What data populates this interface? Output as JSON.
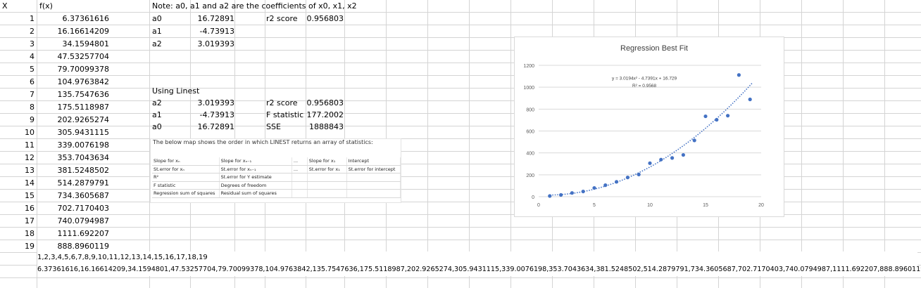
{
  "columns": {
    "x": "X",
    "fx": "f(x)"
  },
  "rows": [
    {
      "x": "1",
      "fx": "6.37361616"
    },
    {
      "x": "2",
      "fx": "16.16614209"
    },
    {
      "x": "3",
      "fx": "34.1594801"
    },
    {
      "x": "4",
      "fx": "47.53257704"
    },
    {
      "x": "5",
      "fx": "79.70099378"
    },
    {
      "x": "6",
      "fx": "104.9763842"
    },
    {
      "x": "7",
      "fx": "135.7547636"
    },
    {
      "x": "8",
      "fx": "175.5118987"
    },
    {
      "x": "9",
      "fx": "202.9265274"
    },
    {
      "x": "10",
      "fx": "305.9431115"
    },
    {
      "x": "11",
      "fx": "339.0076198"
    },
    {
      "x": "12",
      "fx": "353.7043634"
    },
    {
      "x": "13",
      "fx": "381.5248502"
    },
    {
      "x": "14",
      "fx": "514.2879791"
    },
    {
      "x": "15",
      "fx": "734.3605687"
    },
    {
      "x": "16",
      "fx": "702.7170403"
    },
    {
      "x": "17",
      "fx": "740.0794987"
    },
    {
      "x": "18",
      "fx": "1111.692207"
    },
    {
      "x": "19",
      "fx": "888.8960119"
    }
  ],
  "note": "Note: a0, a1 and a2 are the coefficients of x0, x1, x2",
  "coeffs": {
    "a0_label": "a0",
    "a0": "16.72891",
    "a1_label": "a1",
    "a1": "-4.73913",
    "a2_label": "a2",
    "a2": "3.019393",
    "r2_label": "r2 score",
    "r2": "0.956803"
  },
  "linest": {
    "title": "Using Linest",
    "a2_label": "a2",
    "a2": "3.019393",
    "a1_label": "a1",
    "a1": "-4.73913",
    "a0_label": "a0",
    "a0": "16.72891",
    "r2_label": "r2 score",
    "r2": "0.956803",
    "f_label": "F statistic",
    "f": "177.2002",
    "sse_label": "SSE",
    "sse": "1888843"
  },
  "map": {
    "caption": "The below map shows the order in which LINEST returns an array of statistics:",
    "rows": [
      [
        "Slope for xₙ",
        "Slope for xₙ₋₁",
        "...",
        "Slope for x₁",
        "Intercept"
      ],
      [
        "St.error for xₙ",
        "St.error for xₙ₋₁",
        "...",
        "St.error for x₁",
        "St.error for intercept"
      ],
      [
        "R²",
        "St.error for Y estimate",
        "",
        "",
        ""
      ],
      [
        "F statistic",
        "Degrees of freedom",
        "",
        "",
        ""
      ],
      [
        "Regression sum of squares",
        "Residual sum of squares",
        "",
        "",
        ""
      ]
    ]
  },
  "strip": {
    "x_list": "1,2,3,4,5,6,7,8,9,10,11,12,13,14,15,16,17,18,19",
    "y_list": "6.37361616,16.16614209,34.1594801,47.53257704,79.70099378,104.9763842,135.7547636,175.5118987,202.9265274,305.9431115,339.0076198,353.7043634,381.5248502,514.2879791,734.3605687,702.7170403,740.0794987,1111.692207,888.8960119"
  },
  "chart_data": {
    "type": "scatter",
    "title": "Regression Best Fit",
    "x": [
      1,
      2,
      3,
      4,
      5,
      6,
      7,
      8,
      9,
      10,
      11,
      12,
      13,
      14,
      15,
      16,
      17,
      18,
      19
    ],
    "y": [
      6.37361616,
      16.16614209,
      34.1594801,
      47.53257704,
      79.70099378,
      104.9763842,
      135.7547636,
      175.5118987,
      202.9265274,
      305.9431115,
      339.0076198,
      353.7043634,
      381.5248502,
      514.2879791,
      734.3605687,
      702.7170403,
      740.0794987,
      1111.692207,
      888.8960119
    ],
    "trendline": {
      "a2": 3.0194,
      "a1": -4.7391,
      "a0": 16.729,
      "equation": "y = 3.0194x² - 4.7391x + 16.729",
      "r2_text": "R² = 0.9568"
    },
    "xlim": [
      0,
      20
    ],
    "ylim": [
      0,
      1200
    ],
    "xticks": [
      "0",
      "5",
      "10",
      "15",
      "20"
    ],
    "yticks": [
      "0",
      "200",
      "400",
      "600",
      "800",
      "1000",
      "1200"
    ],
    "grid": true,
    "point_color": "#4472c4",
    "trend_color": "#4472c4"
  }
}
